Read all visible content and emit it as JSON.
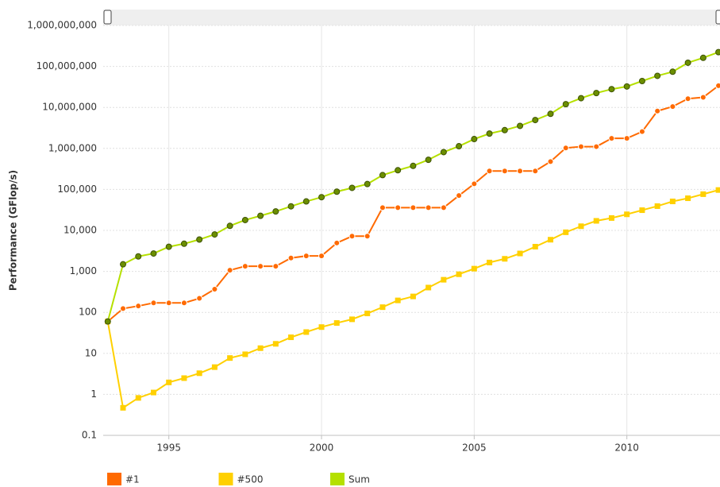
{
  "chart_data": {
    "type": "line",
    "log_y": true,
    "grid": true,
    "legend": "bottom-left",
    "ylabel": "Performance (GFlop/s)",
    "xlim": [
      1992.85,
      2013.05
    ],
    "xticks": [
      1995,
      2000,
      2005,
      2010
    ],
    "ylim": [
      0.1,
      1000000000
    ],
    "yticks": [
      0.1,
      1,
      10,
      100,
      {
        "value": 1000,
        "label": "1,000"
      },
      {
        "value": 10000,
        "label": "10,000"
      },
      {
        "value": 100000,
        "label": "100,000"
      },
      {
        "value": 1000000,
        "label": "1,000,000"
      },
      {
        "value": 10000000,
        "label": "10,000,000"
      },
      {
        "value": 100000000,
        "label": "100,000,000"
      },
      {
        "value": 1000000000,
        "label": "1,000,000,000"
      }
    ],
    "x": [
      1993,
      1993.5,
      1994,
      1994.5,
      1995,
      1995.5,
      1996,
      1996.5,
      1997,
      1997.5,
      1998,
      1998.5,
      1999,
      1999.5,
      2000,
      2000.5,
      2001,
      2001.5,
      2002,
      2002.5,
      2003,
      2003.5,
      2004,
      2004.5,
      2005,
      2005.5,
      2006,
      2006.5,
      2007,
      2007.5,
      2008,
      2008.5,
      2009,
      2009.5,
      2010,
      2010.5,
      2011,
      2011.5,
      2012,
      2012.5,
      2013
    ],
    "series": [
      {
        "name": "#1",
        "color": "#ff6a00",
        "marker": "circle",
        "values": [
          60,
          124,
          143,
          170,
          170,
          170,
          220,
          368,
          1068,
          1338,
          1338,
          1338,
          2121,
          2379,
          2379,
          4938,
          7226,
          7226,
          35860,
          35860,
          35860,
          35860,
          35860,
          70720,
          136800,
          280600,
          280600,
          280600,
          280600,
          478200,
          1026000,
          1105000,
          1105000,
          1759000,
          1759000,
          2566000,
          8162000,
          10510000,
          16320000,
          17590000,
          33860000
        ]
      },
      {
        "name": "#500",
        "color": "#ffd000",
        "marker": "square",
        "values": [
          60,
          0.47,
          0.82,
          1.11,
          1.96,
          2.49,
          3.28,
          4.62,
          7.7,
          9.5,
          13.4,
          17.1,
          24.7,
          33.1,
          43.8,
          55.1,
          67.8,
          94.3,
          134,
          196,
          245,
          403,
          625,
          851,
          1166,
          1646,
          2026,
          2737,
          4005,
          5929,
          9000,
          12640,
          17090,
          20050,
          24670,
          31120,
          39090,
          50940,
          60820,
          76500,
          96620
        ]
      },
      {
        "name": "Sum",
        "color": "#b5e000",
        "marker_color": "#6b8e00",
        "marker": "circle",
        "values": [
          60,
          1490,
          2320,
          2730,
          3990,
          4730,
          5990,
          7970,
          12900,
          17900,
          22700,
          29000,
          38600,
          50900,
          64600,
          88000,
          109000,
          135000,
          223000,
          293000,
          375000,
          528000,
          813000,
          1130000,
          1690000,
          2300000,
          2790000,
          3540000,
          4920000,
          6970000,
          12000000,
          16800000,
          22400000,
          27900000,
          32400000,
          44000000,
          58900000,
          74200000,
          123000000,
          162000000,
          223000000
        ]
      }
    ]
  }
}
